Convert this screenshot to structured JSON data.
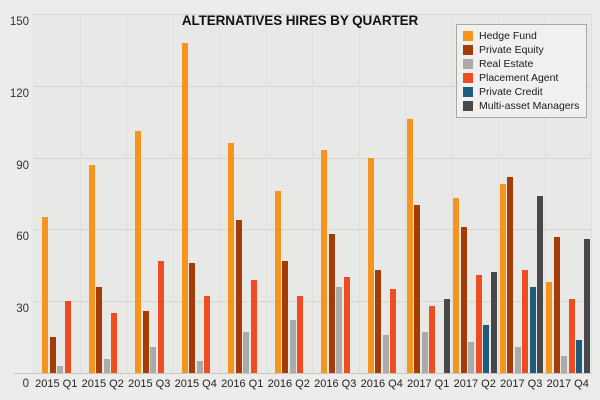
{
  "chart_data": {
    "type": "bar",
    "title": "ALTERNATIVES HIRES BY QUARTER",
    "categories": [
      "2015 Q1",
      "2015 Q2",
      "2015 Q3",
      "2015 Q4",
      "2016 Q1",
      "2016 Q2",
      "2016 Q3",
      "2016 Q4",
      "2017 Q1",
      "2017 Q2",
      "2017 Q3",
      "2017 Q4"
    ],
    "series": [
      {
        "name": "Hedge Fund",
        "color": "#F7941E",
        "values": [
          65,
          87,
          101,
          138,
          96,
          76,
          93,
          90,
          106,
          73,
          79,
          38
        ]
      },
      {
        "name": "Private Equity",
        "color": "#A43C08",
        "values": [
          15,
          36,
          26,
          46,
          64,
          47,
          58,
          43,
          70,
          61,
          82,
          57
        ]
      },
      {
        "name": "Real Estate",
        "color": "#AAAAAA",
        "values": [
          3,
          6,
          11,
          5,
          17,
          22,
          36,
          16,
          17,
          13,
          11,
          7
        ]
      },
      {
        "name": "Placement Agent",
        "color": "#F04C22",
        "values": [
          30,
          25,
          47,
          32,
          39,
          32,
          40,
          35,
          28,
          41,
          43,
          31
        ]
      },
      {
        "name": "Private Credit",
        "color": "#1F5B7D",
        "values": [
          null,
          null,
          null,
          null,
          null,
          null,
          null,
          null,
          0,
          20,
          36,
          14
        ]
      },
      {
        "name": "Multi-asset Managers",
        "color": "#47484A",
        "values": [
          null,
          null,
          null,
          null,
          null,
          null,
          null,
          null,
          31,
          42,
          74,
          56
        ]
      }
    ],
    "y_axis": {
      "ticks": [
        0,
        30,
        60,
        90,
        120,
        150
      ],
      "max": 150
    },
    "x_axis_label": "",
    "y_axis_label": "",
    "legend_position": "top-right",
    "grid": true,
    "background": "#E8E8E7"
  }
}
